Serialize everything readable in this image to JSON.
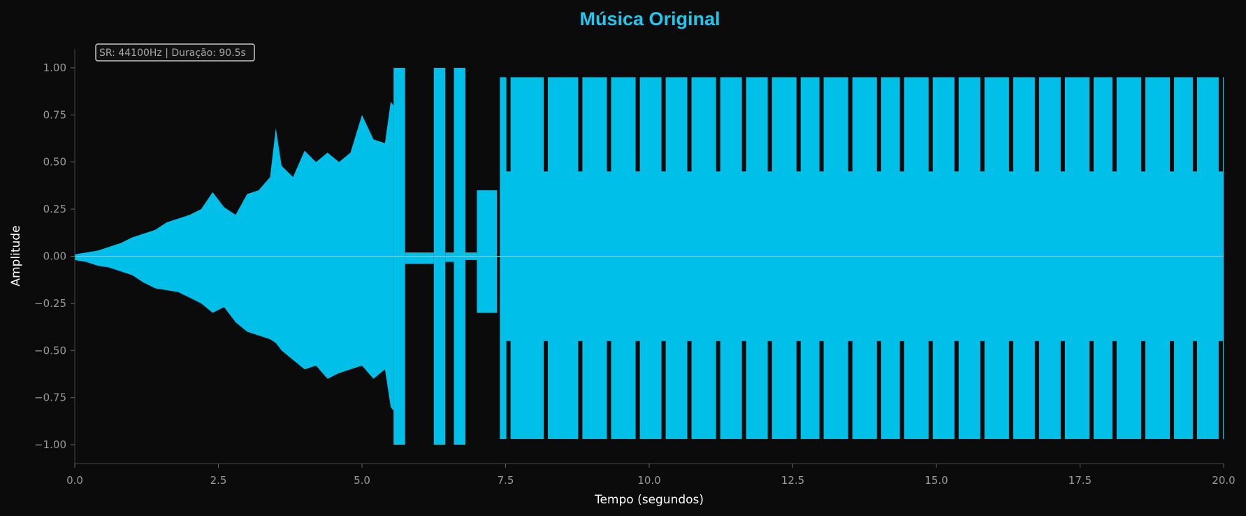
{
  "chart_data": {
    "type": "area",
    "title": "Música Original",
    "xlabel": "Tempo (segundos)",
    "ylabel": "Amplitude",
    "info_box": "SR: 44100Hz | Duração: 90.5s",
    "xlim": [
      0,
      20
    ],
    "ylim": [
      -1.1,
      1.1
    ],
    "x_ticks": [
      0,
      2.5,
      5,
      7.5,
      10,
      12.5,
      15,
      17.5,
      20
    ],
    "x_tick_labels": [
      "0.0",
      "2.5",
      "5.0",
      "7.5",
      "10.0",
      "12.5",
      "15.0",
      "17.5",
      "20.0"
    ],
    "y_ticks": [
      1,
      0.75,
      0.5,
      0.25,
      0,
      -0.25,
      -0.5,
      -0.75,
      -1
    ],
    "y_tick_labels": [
      "1.00",
      "0.75",
      "0.50",
      "0.25",
      "0.00",
      "−0.25",
      "−0.50",
      "−0.75",
      "−1.00"
    ],
    "grid": false,
    "colors": {
      "waveform": "#00c0ea",
      "title": "#1ec8f0",
      "background": "#0b0b0b",
      "axis": "#444444"
    },
    "series": [
      {
        "x": [
          0.0,
          0.2,
          0.4,
          0.6,
          0.8,
          1.0,
          1.2,
          1.4,
          1.6,
          1.8,
          2.0,
          2.2,
          2.4,
          2.6,
          2.8,
          3.0,
          3.2,
          3.4,
          3.5,
          3.6,
          3.8,
          4.0,
          4.2,
          4.4,
          4.6,
          4.8,
          5.0,
          5.2,
          5.4,
          5.5,
          5.55
        ],
        "upper": [
          0.01,
          0.02,
          0.03,
          0.05,
          0.07,
          0.1,
          0.12,
          0.14,
          0.18,
          0.2,
          0.22,
          0.25,
          0.34,
          0.26,
          0.22,
          0.33,
          0.35,
          0.42,
          0.68,
          0.48,
          0.42,
          0.56,
          0.5,
          0.55,
          0.5,
          0.55,
          0.75,
          0.62,
          0.6,
          0.82,
          0.8
        ],
        "lower": [
          -0.02,
          -0.03,
          -0.05,
          -0.06,
          -0.08,
          -0.1,
          -0.14,
          -0.17,
          -0.18,
          -0.19,
          -0.22,
          -0.25,
          -0.3,
          -0.27,
          -0.35,
          -0.4,
          -0.42,
          -0.44,
          -0.46,
          -0.5,
          -0.55,
          -0.6,
          -0.58,
          -0.65,
          -0.62,
          -0.6,
          -0.58,
          -0.65,
          -0.6,
          -0.8,
          -0.82
        ]
      }
    ],
    "segments": [
      {
        "x0": 5.55,
        "x1": 5.75,
        "upper": 1.0,
        "lower": -1.0
      },
      {
        "x0": 5.75,
        "x1": 6.25,
        "upper": 0.02,
        "lower": -0.04
      },
      {
        "x0": 6.25,
        "x1": 6.45,
        "upper": 1.0,
        "lower": -1.0
      },
      {
        "x0": 6.45,
        "x1": 6.6,
        "upper": 0.02,
        "lower": -0.03
      },
      {
        "x0": 6.6,
        "x1": 6.8,
        "upper": 1.0,
        "lower": -1.0
      },
      {
        "x0": 6.8,
        "x1": 7.0,
        "upper": 0.02,
        "lower": -0.02
      },
      {
        "x0": 7.0,
        "x1": 7.35,
        "upper": 0.35,
        "lower": -0.3
      },
      {
        "x0": 7.4,
        "x1": 20.0,
        "upper": 0.95,
        "lower": -0.97
      }
    ],
    "gaps_after_7_4": [
      7.55,
      8.2,
      8.8,
      9.3,
      9.8,
      10.25,
      10.7,
      11.2,
      11.65,
      12.1,
      12.6,
      13.0,
      13.5,
      14.0,
      14.4,
      14.9,
      15.35,
      15.8,
      16.3,
      16.75,
      17.2,
      17.7,
      18.1,
      18.6,
      19.1,
      19.5,
      19.95
    ]
  }
}
